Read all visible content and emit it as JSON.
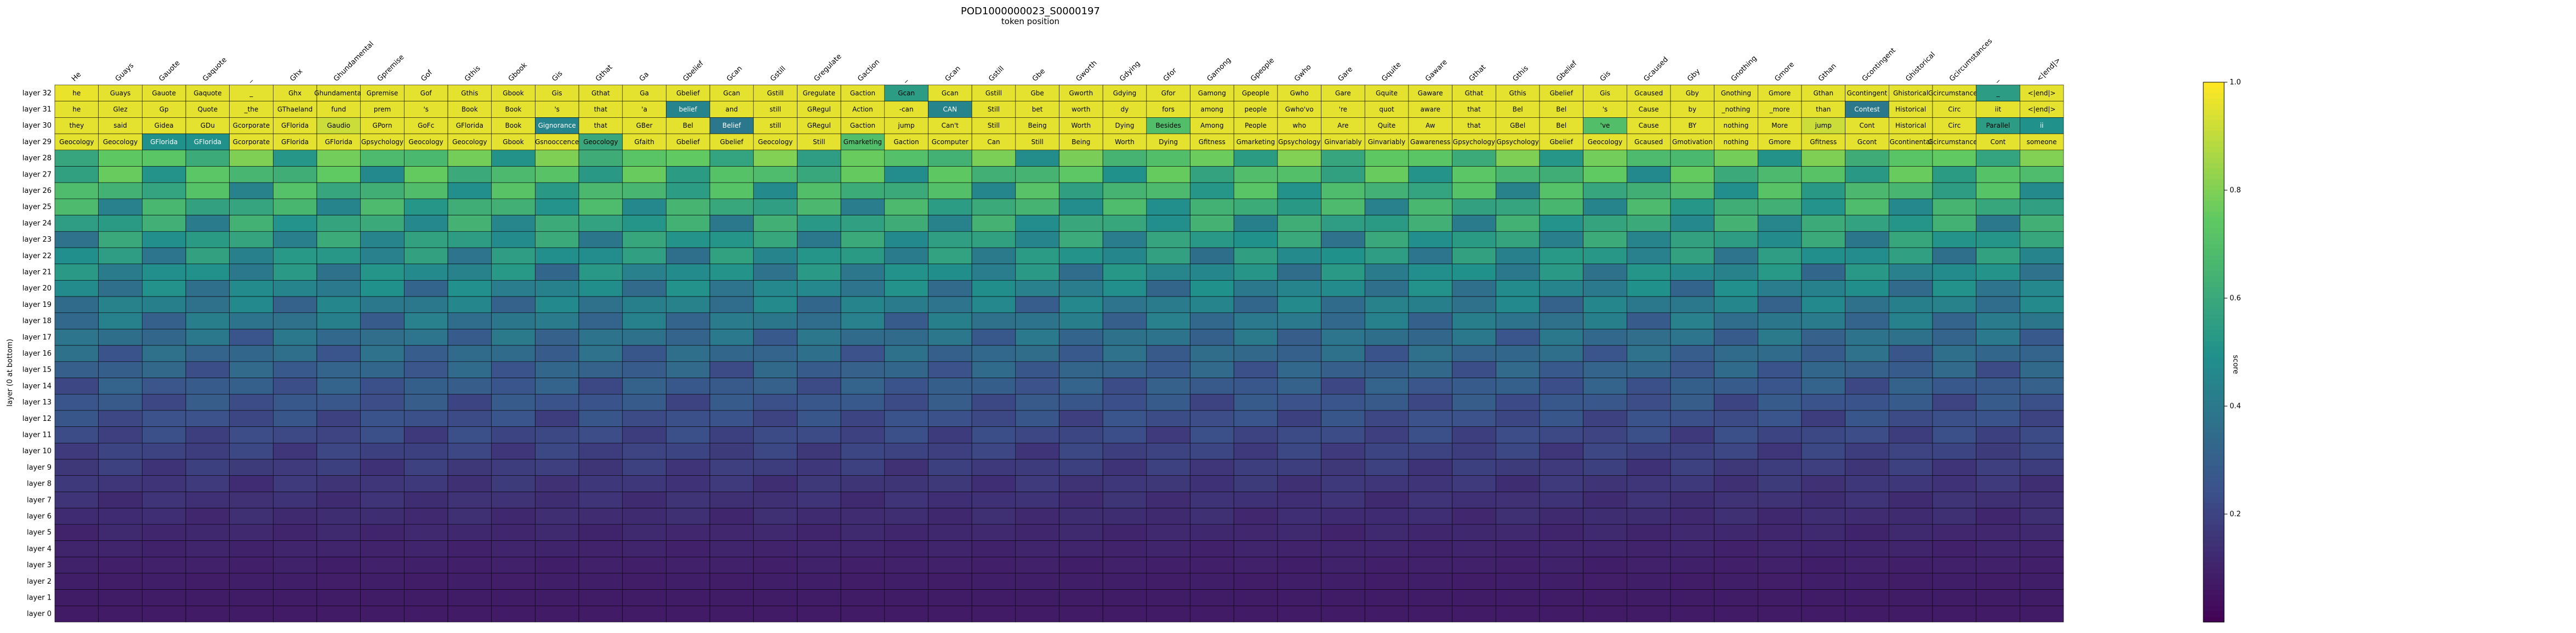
{
  "chart_data": {
    "type": "heatmap",
    "title": "POD1000000023_S0000197",
    "xlabel": "token position",
    "ylabel": "layer (0 at bottom)",
    "colorbar": {
      "label": "score",
      "colormap": "viridis",
      "range": [
        0.0,
        1.0
      ],
      "ticks": [
        1.0,
        0.8,
        0.6,
        0.4,
        0.2
      ]
    },
    "x_tokens": [
      "He",
      "Guays",
      "Gauote",
      "Gaquote",
      "_",
      "Ghx",
      "Ghundamental",
      "Gpremise",
      "Gof",
      "Gthis",
      "Gbook",
      "Gis",
      "Gthat",
      "Ga",
      "Gbelief",
      "Gcan",
      "Gstill",
      "Gregulate",
      "Gaction",
      "_",
      "Gcan",
      "Gstill",
      "Gbe",
      "Gworth",
      "Gdying",
      "Gfor",
      "Gamong",
      "Gpeople",
      "Gwho",
      "Gare",
      "Gquite",
      "Gaware",
      "Gthat",
      "Gthis",
      "Gbelief",
      "Gis",
      "Gcaused",
      "Gby",
      "Gnothing",
      "Gmore",
      "Gthan",
      "Gcontingent",
      "Ghistorical",
      "Gcircumstances",
      "_",
      "<|end|>"
    ],
    "y_layers": [
      "layer 32",
      "layer 31",
      "layer 30",
      "layer 29",
      "layer 28",
      "layer 27",
      "layer 26",
      "layer 25",
      "layer 24",
      "layer 23",
      "layer 22",
      "layer 21",
      "layer 20",
      "layer 19",
      "layer 18",
      "layer 17",
      "layer 16",
      "layer 15",
      "layer 14",
      "layer 13",
      "layer 12",
      "layer 11",
      "layer 10",
      "layer 9",
      "layer 8",
      "layer 7",
      "layer 6",
      "layer 5",
      "layer 4",
      "layer 3",
      "layer 2",
      "layer 1",
      "layer 0"
    ],
    "layer_rows": [
      {
        "layer": "layer 32",
        "tokens": [
          "he",
          "Guays",
          "Gauote",
          "Gaquote",
          "_",
          "Ghx",
          "Ghundamental",
          "Gpremise",
          "Gof",
          "Gthis",
          "Gbook",
          "Gis",
          "Gthat",
          "Ga",
          "Gbelief",
          "Gcan",
          "Gstill",
          "Gregulate",
          "Gaction",
          "Gcan",
          "Gcan",
          "Gstill",
          "Gbe",
          "Gworth",
          "Gdying",
          "Gfor",
          "Gamong",
          "Gpeople",
          "Gwho",
          "Gare",
          "Gquite",
          "Gaware",
          "Gthat",
          "Gthis",
          "Gbelief",
          "Gis",
          "Gcaused",
          "Gby",
          "Gnothing",
          "Gmore",
          "Gthan",
          "Gcontingent",
          "Ghistorical",
          "Gcircumstances",
          "_",
          "<|end|>"
        ],
        "scores": [
          0.97,
          0.96,
          0.96,
          0.96,
          0.96,
          0.96,
          0.96,
          0.96,
          0.96,
          0.96,
          0.96,
          0.96,
          0.96,
          0.96,
          0.96,
          0.96,
          0.96,
          0.96,
          0.96,
          0.55,
          0.96,
          0.96,
          0.96,
          0.96,
          0.96,
          0.96,
          0.96,
          0.96,
          0.96,
          0.96,
          0.96,
          0.96,
          0.96,
          0.96,
          0.96,
          0.96,
          0.96,
          0.96,
          0.96,
          0.96,
          0.96,
          0.96,
          0.96,
          0.96,
          0.55,
          0.96
        ]
      },
      {
        "layer": "layer 31",
        "tokens": [
          "he",
          "Glez",
          "Gp",
          "Quote",
          "_the",
          "GThaeland",
          "fund",
          "prem",
          "'s",
          "Book",
          "Book",
          "'s",
          "that",
          "'a",
          "belief",
          "and",
          "still",
          "GRegul",
          "Action",
          "-can",
          "CAN",
          "Still",
          "bet",
          "worth",
          "dy",
          "fors",
          "among",
          "people",
          "Gwho'vo",
          "'re",
          "quot",
          "aware",
          "that",
          "Bel",
          "Bel",
          "'s",
          "Cause",
          "by",
          "_nothing",
          "_more",
          "than",
          "Contest",
          "Historical",
          "Circ",
          "iit",
          "<|end|>"
        ],
        "scores": [
          0.96,
          0.96,
          0.96,
          0.96,
          0.96,
          0.96,
          0.96,
          0.96,
          0.96,
          0.96,
          0.96,
          0.96,
          0.96,
          0.96,
          0.45,
          0.96,
          0.96,
          0.96,
          0.96,
          0.96,
          0.45,
          0.96,
          0.96,
          0.96,
          0.96,
          0.96,
          0.96,
          0.96,
          0.96,
          0.96,
          0.96,
          0.96,
          0.96,
          0.96,
          0.96,
          0.96,
          0.96,
          0.96,
          0.96,
          0.96,
          0.96,
          0.4,
          0.96,
          0.96,
          0.96,
          0.96
        ]
      },
      {
        "layer": "layer 30",
        "tokens": [
          "they",
          "said",
          "Gidea",
          "GDu",
          "Gcorporate",
          "GFlorida",
          "Gaudio",
          "GPorn",
          "GoFc",
          "GFlorida",
          "Book",
          "Gignorance",
          "that",
          "GBer",
          "Bel",
          "Belief",
          "still",
          "GRegul",
          "Gaction",
          "jump",
          "Can't",
          "Still",
          "Being",
          "Worth",
          "Dying",
          "Besides",
          "Among",
          "People",
          "who",
          "Are",
          "Quite",
          "Aw",
          "that",
          "GBel",
          "Bel",
          "'ve",
          "Cause",
          "BY",
          "nothing",
          "More",
          "jump",
          "Cont",
          "Historical",
          "Circ",
          "Parallel",
          "ii"
        ],
        "scores": [
          0.96,
          0.96,
          0.96,
          0.96,
          0.96,
          0.96,
          0.92,
          0.96,
          0.96,
          0.96,
          0.96,
          0.45,
          0.96,
          0.96,
          0.96,
          0.4,
          0.96,
          0.96,
          0.96,
          0.96,
          0.96,
          0.96,
          0.96,
          0.96,
          0.96,
          0.7,
          0.96,
          0.96,
          0.96,
          0.96,
          0.96,
          0.96,
          0.96,
          0.96,
          0.96,
          0.7,
          0.96,
          0.96,
          0.96,
          0.96,
          0.92,
          0.96,
          0.96,
          0.96,
          0.55,
          0.5
        ]
      },
      {
        "layer": "layer 29",
        "tokens": [
          "Geocology",
          "Geocology",
          "GFlorida",
          "GFlorida",
          "Gcorporate",
          "GFlorida",
          "GFlorida",
          "Gpsychology",
          "Geocology",
          "Geocology",
          "Gbook",
          "Gsnooccence",
          "Geocology",
          "Gfaith",
          "Gbelief",
          "Gbelief",
          "Geocology",
          "Still",
          "Gmarketing",
          "Gaction",
          "Gcomputer",
          "Can",
          "Still",
          "Being",
          "Worth",
          "Dying",
          "Gfitness",
          "Gmarketing",
          "Gpsychology",
          "Ginvariably",
          "Ginvariably",
          "Gawareness",
          "Gpsychology",
          "Gpsychology",
          "Gbelief",
          "Geocology",
          "Gcaused",
          "Gmotivation",
          "nothing",
          "Gmore",
          "Gfitness",
          "Gcont",
          "Gcontinental",
          "Gcircumstances",
          "Cont",
          "someone"
        ],
        "scores": [
          0.96,
          0.96,
          0.5,
          0.5,
          0.96,
          0.96,
          0.96,
          0.96,
          0.96,
          0.96,
          0.96,
          0.96,
          0.6,
          0.96,
          0.96,
          0.96,
          0.96,
          0.96,
          0.7,
          0.96,
          0.96,
          0.96,
          0.96,
          0.96,
          0.96,
          0.96,
          0.96,
          0.96,
          0.96,
          0.96,
          0.96,
          0.96,
          0.96,
          0.96,
          0.96,
          0.96,
          0.96,
          0.96,
          0.96,
          0.96,
          0.96,
          0.96,
          0.96,
          0.96,
          0.96,
          0.96
        ]
      }
    ]
  }
}
